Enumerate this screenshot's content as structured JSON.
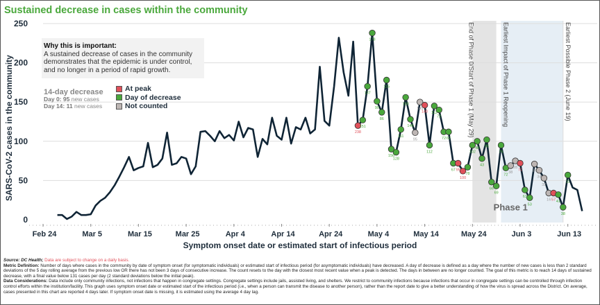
{
  "title": "Sustained decrease in cases within the community",
  "info_box": {
    "heading": "Why this is important:",
    "body": "A sustained decrease of cases in the community demonstrates that the epidemic is under control, and no longer in a period of rapid growth."
  },
  "decrease_summary": {
    "heading": "14-day decrease",
    "day0_label": "Day 0:",
    "day0_value": "95",
    "day0_suffix": "new cases",
    "day14_label": "Day 14:",
    "day14_value": "11",
    "day14_suffix": "new cases"
  },
  "legend": [
    {
      "label": "At peak",
      "color": "#e0505a"
    },
    {
      "label": "Day of decrease",
      "color": "#4aa83c"
    },
    {
      "label": "Not counted",
      "color": "#bdb6b4"
    }
  ],
  "colors": {
    "line": "#0f2435",
    "peak": "#e0505a",
    "decrease": "#4aa83c",
    "not_counted": "#bdb6b4",
    "phase0_band": "#e4e4e4",
    "phase1_band": "#e6eef5",
    "grid": "#dddddd",
    "title": "#4aa83c"
  },
  "footer": {
    "source_label": "Source: DC Health;",
    "source_note": "Data are subject to change on a daily basis.",
    "metric_label": "Metric Definition:",
    "metric_text": "Number of days where cases in the community by date of symptom onset (for symptomatic individuals) or estimated start of infectious period (for asymptomatic individuals) have decreased. A day of decrease is defined as a day where the number of new cases is less than 2 standard deviations of the 5 day rolling average from the previous low OR there has not been 3 days of consecutive increase. The count resets to the day with the closest most recent value when a peak is detected. The days in between are no longer counted. The goal of this metric is to reach 14 days of sustained decrease, with a final value below 131 cases per day (2 standard deviations below the initial peak).",
    "considerations_label": "Data Considerations:",
    "considerations_text": "Data include only community infections, not infections that happen in congregate settings. Congregate settings include jails, assisted living, and shelters. We restrict to community infections because infections that occur in congregate settings can be controlled through infection control efforts within the institution/facility. This graph uses symptom onset date or estimated start of the infectious period (i.e., when a person can transmit the disease to another person), rather than the report date to give a better understanding of how the virus is spread across the District. On average, cases presented in this chart are reported 4 days later. If symptom onset date is missing, it is estimated using the average 4 day lag."
  },
  "chart_data": {
    "type": "line",
    "title": "Sustained decrease in cases within the community",
    "xlabel": "Symptom onset date or estimated start of infectious period",
    "ylabel": "SARS-CoV-2 cases in the community",
    "ylim": [
      0,
      250
    ],
    "yticks": [
      0,
      50,
      100,
      150,
      200,
      250
    ],
    "x_start_date": "Feb 24",
    "x_range_days": [
      0,
      113
    ],
    "xticks": [
      {
        "label": "Feb 24",
        "day": 0
      },
      {
        "label": "Mar 5",
        "day": 10
      },
      {
        "label": "Mar 15",
        "day": 20
      },
      {
        "label": "Mar 25",
        "day": 30
      },
      {
        "label": "Apr 4",
        "day": 40
      },
      {
        "label": "Apr 14",
        "day": 50
      },
      {
        "label": "Apr 24",
        "day": 60
      },
      {
        "label": "May 4",
        "day": 70
      },
      {
        "label": "May 14",
        "day": 80
      },
      {
        "label": "May 24",
        "day": 90
      },
      {
        "label": "Jun 3",
        "day": 100
      },
      {
        "label": "Jun 13",
        "day": 110
      }
    ],
    "grid": true,
    "legend_position": "top-left",
    "series": [
      {
        "name": "Community cases",
        "start_day": 3,
        "values": [
          6,
          6,
          1,
          4,
          10,
          6,
          6,
          7,
          18,
          24,
          28,
          35,
          44,
          55,
          67,
          80,
          63,
          66,
          68,
          98,
          67,
          70,
          78,
          111,
          70,
          72,
          80,
          78,
          58,
          68,
          112,
          113,
          107,
          100,
          113,
          104,
          108,
          101,
          125,
          105,
          117,
          115,
          80,
          103,
          96,
          130,
          107,
          102,
          130,
          97,
          118,
          115,
          130,
          110,
          115,
          195,
          126,
          120,
          170,
          232,
          188,
          158,
          227,
          120,
          127,
          170,
          238,
          151,
          137,
          178,
          90,
          86,
          115,
          156,
          128,
          111,
          150,
          146,
          95,
          145,
          140,
          112,
          112,
          72,
          72,
          62,
          67,
          95,
          100,
          78,
          102,
          48,
          43,
          95,
          66,
          69,
          75,
          72,
          38,
          28,
          71,
          63,
          53,
          34,
          34,
          32,
          16,
          57,
          41,
          38,
          11
        ],
        "flags_start_day": 66,
        "flags": [
          "peak",
          "decrease",
          "decrease",
          "decrease",
          "decrease",
          "decrease",
          "decrease",
          "decrease",
          "decrease",
          "decrease",
          "decrease",
          "decrease",
          "not_counted",
          "not_counted",
          "peak",
          "decrease",
          "decrease",
          "decrease",
          "decrease",
          "decrease",
          "decrease",
          "peak",
          "peak",
          "decrease",
          "decrease",
          "decrease",
          "decrease",
          "decrease",
          "decrease",
          "decrease",
          "decrease",
          "decrease",
          "not_counted",
          "not_counted",
          "peak",
          "decrease",
          "decrease",
          "not_counted",
          "not_counted",
          "not_counted",
          "not_counted",
          "peak",
          "decrease",
          "decrease",
          "decrease"
        ],
        "point_labels_shown": [
          238,
          151,
          137,
          178,
          90,
          86,
          115,
          156,
          128,
          111,
          150,
          146,
          95,
          145,
          140,
          112,
          112,
          72,
          72,
          62,
          67,
          95,
          100,
          78,
          102,
          48,
          43,
          95,
          66,
          69,
          75,
          72,
          38,
          28,
          71,
          63,
          53,
          34,
          34,
          32,
          16,
          57,
          41,
          38,
          11
        ]
      }
    ],
    "annotations": [
      {
        "type": "band",
        "from_day": 90,
        "to_day": 95,
        "label": "End of Phase 0/Start of Phase 1 (May 29)",
        "label_day": 95
      },
      {
        "type": "band",
        "from_day": 96,
        "to_day": 109,
        "label": "Earliest Impact of Phase 1 Reopening",
        "label_day": 96
      },
      {
        "type": "vline",
        "day": 109,
        "label": "Earliest Possible Phase 2 (June 19)"
      },
      {
        "type": "text",
        "label": "Phase 1",
        "day": 98,
        "value": 12
      }
    ]
  }
}
